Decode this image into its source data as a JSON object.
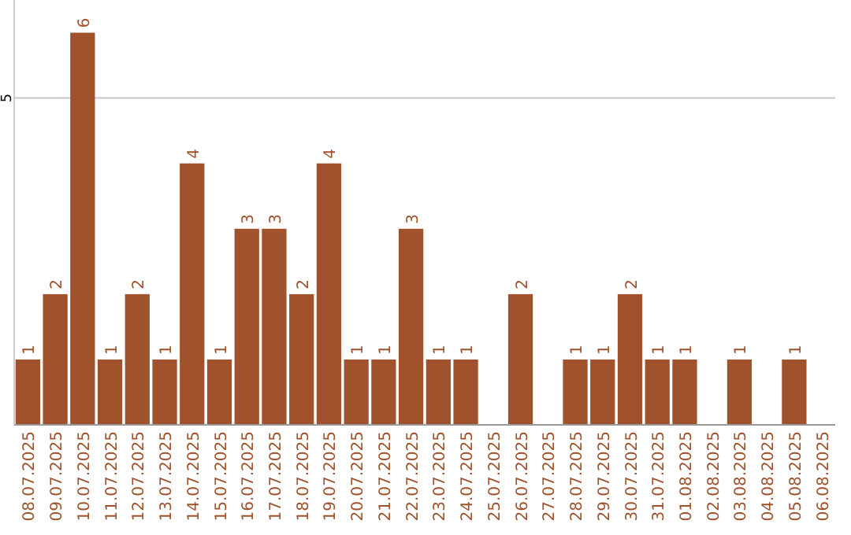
{
  "chart_data": {
    "type": "bar",
    "categories": [
      "08.07.2025",
      "09.07.2025",
      "10.07.2025",
      "11.07.2025",
      "12.07.2025",
      "13.07.2025",
      "14.07.2025",
      "15.07.2025",
      "16.07.2025",
      "17.07.2025",
      "18.07.2025",
      "19.07.2025",
      "20.07.2025",
      "21.07.2025",
      "22.07.2025",
      "23.07.2025",
      "24.07.2025",
      "25.07.2025",
      "26.07.2025",
      "27.07.2025",
      "28.07.2025",
      "29.07.2025",
      "30.07.2025",
      "31.07.2025",
      "01.08.2025",
      "02.08.2025",
      "03.08.2025",
      "04.08.2025",
      "05.08.2025",
      "06.08.2025"
    ],
    "values": [
      1,
      2,
      6,
      1,
      2,
      1,
      4,
      1,
      3,
      3,
      2,
      4,
      1,
      1,
      3,
      1,
      1,
      null,
      2,
      null,
      1,
      1,
      2,
      1,
      1,
      null,
      1,
      null,
      1,
      null
    ],
    "color": "#a0522d",
    "ylim": [
      0,
      6.5
    ],
    "yticks": [
      5
    ],
    "grid": "y",
    "data_labels": true
  }
}
